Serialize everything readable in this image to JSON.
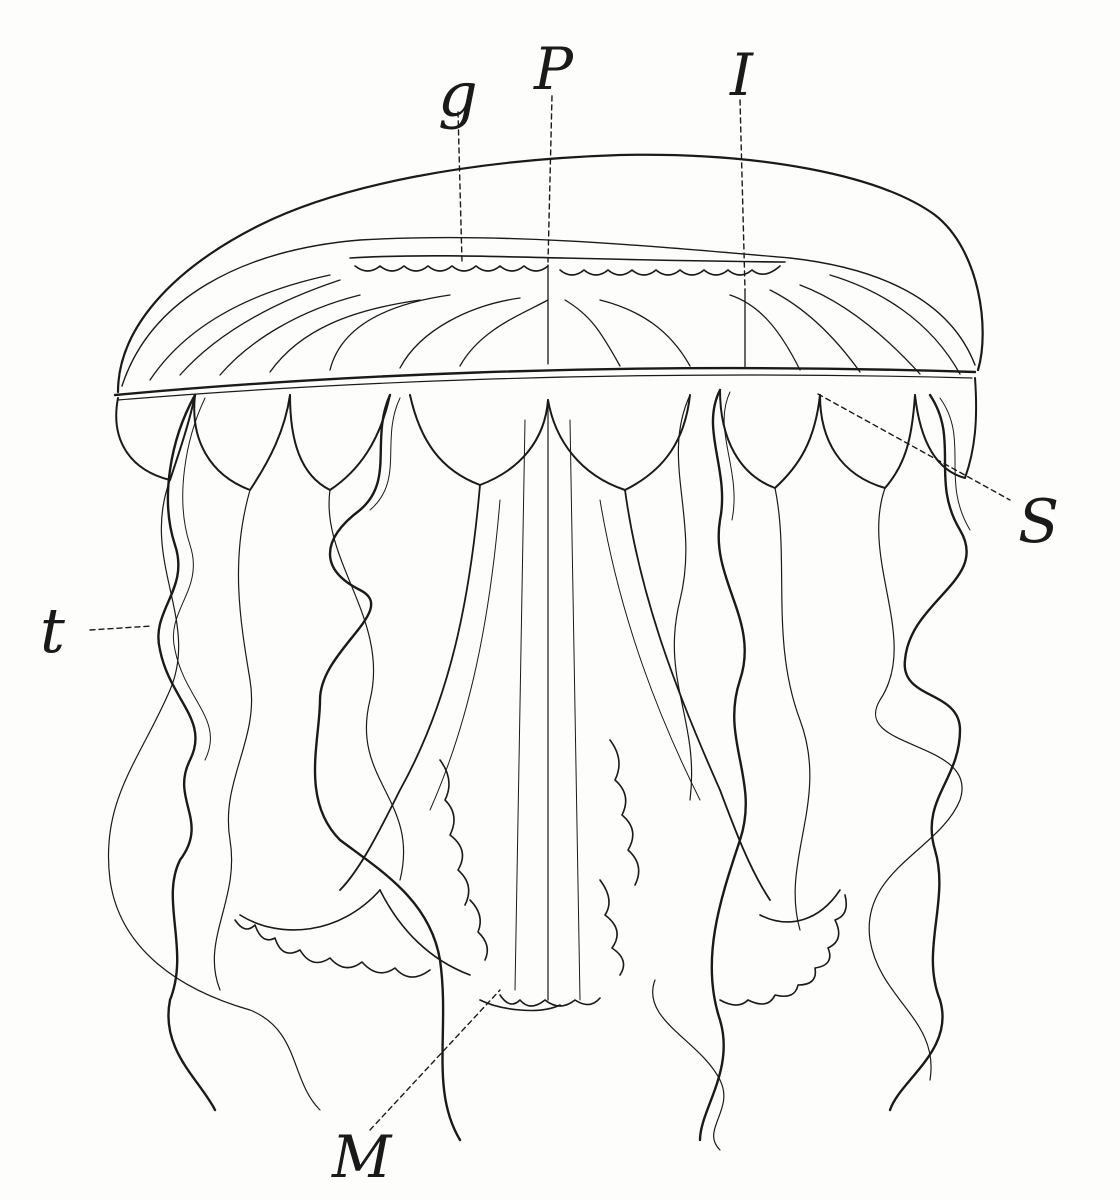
{
  "figure": {
    "labels": {
      "g": "g",
      "p": "P",
      "i": "I",
      "s": "S",
      "t": "t",
      "m": "M"
    }
  },
  "colors": {
    "ink": "#1a1a1a",
    "paper": "#fdfdfc"
  }
}
